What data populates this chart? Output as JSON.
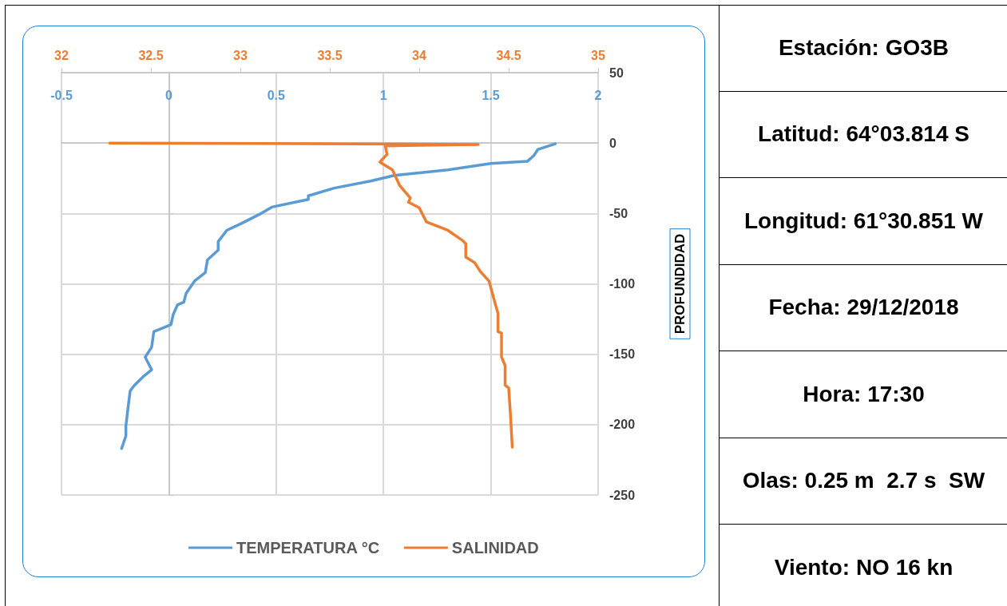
{
  "chart_data": [
    {
      "type": "line",
      "ylabel": "PROFUNDIDAD",
      "xlim": [
        -0.5,
        2
      ],
      "xticks": [
        -0.5,
        0,
        0.5,
        1,
        1.5,
        2
      ],
      "x2lim": [
        32,
        35
      ],
      "x2ticks": [
        32,
        32.5,
        33,
        33.5,
        34,
        34.5,
        35
      ],
      "ylim": [
        -250,
        50
      ],
      "yticks": [
        -250,
        -200,
        -150,
        -100,
        -50,
        0,
        50
      ],
      "grid": true,
      "legend": "bottom",
      "marker": "none",
      "line_style": "solid",
      "series": [
        {
          "name": "TEMPERATURA °C",
          "color": "#5b9bd5",
          "x": [
            1.8,
            1.72,
            1.7,
            1.67,
            1.5,
            1.3,
            1.05,
            0.94,
            0.77,
            0.65,
            0.65,
            0.48,
            0.43,
            0.34,
            0.27,
            0.23,
            0.23,
            0.18,
            0.17,
            0.12,
            0.08,
            0.07,
            0.04,
            0.02,
            0.01,
            -0.07,
            -0.08,
            -0.11,
            -0.08,
            -0.12,
            -0.16,
            -0.18,
            -0.19,
            -0.2,
            -0.2,
            -0.22
          ],
          "values": [
            -0.5,
            -4.5,
            -9,
            -13,
            -14.5,
            -19,
            -23,
            -27,
            -32,
            -37.5,
            -40,
            -45.5,
            -50,
            -57,
            -62,
            -70,
            -76,
            -83,
            -92,
            -98,
            -107,
            -113,
            -115,
            -122,
            -129,
            -134,
            -145,
            -152,
            -161,
            -166,
            -172,
            -176,
            -188,
            -201,
            -208,
            -217
          ]
        },
        {
          "name": "SALINIDAD",
          "color": "#ed7d31",
          "axis": "x2",
          "x": [
            32.27,
            34.33,
            33.81,
            33.82,
            33.78,
            33.85,
            33.89,
            33.95,
            33.94,
            34.0,
            34.04,
            34.16,
            34.24,
            34.26,
            34.26,
            34.31,
            34.34,
            34.39,
            34.42,
            34.44,
            34.44,
            34.46,
            34.46,
            34.48,
            34.48,
            34.5,
            34.51,
            34.52
          ],
          "values": [
            0,
            -1,
            -2,
            -8,
            -13.5,
            -19,
            -30,
            -39,
            -42,
            -46,
            -56,
            -62,
            -69,
            -71.5,
            -81,
            -85,
            -91,
            -98,
            -112,
            -121,
            -134,
            -135,
            -152,
            -158,
            -172,
            -174,
            -193,
            -216
          ]
        }
      ]
    },
    {
      "type": "other",
      "annotations": [
        "Estación: GO3B",
        "Latitud: 64°03.814 S",
        "Longitud: 61°30.851 W",
        "Fecha: 29/12/2018",
        "Hora: 17:30",
        "Olas: 0.25 m  2.7 s  SW",
        "Viento: NO 16 kn"
      ]
    }
  ]
}
